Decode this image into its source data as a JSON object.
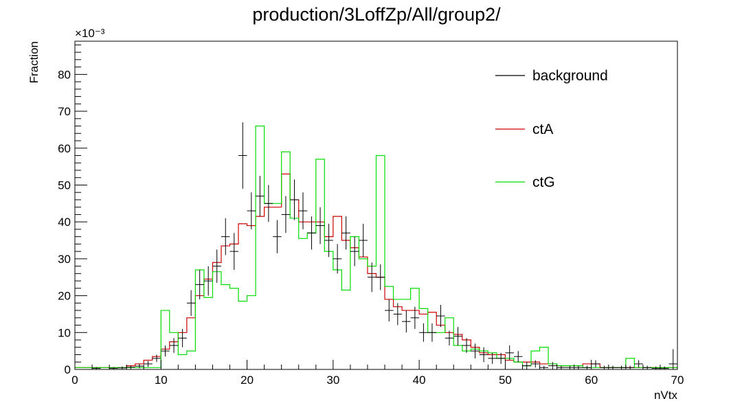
{
  "chart_data": {
    "type": "line",
    "title": "production/3LoffZp/All/group2/",
    "xlabel": "nVtx",
    "ylabel": "Fraction",
    "y_multiplier": "×10⁻³",
    "xlim": [
      0,
      70
    ],
    "ylim": [
      0,
      89
    ],
    "x_ticks": [
      0,
      10,
      20,
      30,
      40,
      50,
      60,
      70
    ],
    "y_ticks": [
      0,
      10,
      20,
      30,
      40,
      50,
      60,
      70,
      80
    ],
    "grid": false,
    "legend_position": "top-right",
    "colors": {
      "background": "#000000",
      "ctA": "#cc0000",
      "ctG": "#00dd00"
    },
    "bin_edges_start": 0,
    "bin_width": 1,
    "series": [
      {
        "name": "background",
        "style": "points-with-errors",
        "values": [
          0,
          0,
          0.3,
          0,
          0.3,
          0.4,
          0.6,
          0.9,
          1.5,
          3,
          5,
          6.5,
          8.5,
          18,
          23,
          24,
          28,
          36,
          32,
          58,
          43,
          47,
          45,
          36,
          42,
          46,
          43,
          37,
          39,
          35,
          30,
          37,
          32,
          35,
          25,
          25,
          16,
          15,
          13,
          14,
          10,
          10,
          14.5,
          8.5,
          9,
          6.5,
          5,
          4,
          3,
          3,
          4.5,
          3.5,
          1,
          1.5,
          0.5,
          1,
          0.5,
          0.5,
          0.5,
          0.5,
          1.5,
          0.5,
          0.5,
          0.5,
          0.5,
          1.5,
          0.5,
          0.3,
          0.3,
          1.5
        ],
        "errors": [
          0,
          0,
          0.3,
          0,
          0.3,
          0.4,
          0.5,
          0.6,
          0.8,
          1,
          1.5,
          2,
          2.5,
          3.5,
          4,
          4,
          4.5,
          5,
          5,
          9,
          5,
          5.5,
          5,
          4.5,
          5,
          5.5,
          5,
          4.5,
          5,
          4.5,
          4,
          4.5,
          4,
          4.5,
          4,
          3.5,
          3,
          3,
          3,
          3,
          2.5,
          2.5,
          3,
          2,
          2.5,
          2,
          2,
          2,
          1.5,
          1.5,
          2,
          1.5,
          1,
          1,
          0.5,
          1,
          0.5,
          0.5,
          0.5,
          0.5,
          1,
          0.5,
          0.5,
          0.5,
          0.5,
          1,
          0.5,
          0.5,
          0.5,
          4
        ]
      },
      {
        "name": "ctA",
        "style": "step",
        "values": [
          0.5,
          0.5,
          0.5,
          0.5,
          0.5,
          0.5,
          1,
          1.5,
          2.5,
          3.5,
          5.5,
          7.5,
          10,
          14,
          20,
          24.5,
          29,
          33.5,
          34,
          39.5,
          39,
          41.5,
          44,
          44,
          53,
          46,
          40,
          40,
          40,
          36,
          41.5,
          35,
          33,
          30.5,
          26,
          25,
          19,
          17,
          16,
          16,
          15,
          15.5,
          12,
          10,
          9.5,
          8,
          6,
          4.5,
          4,
          4,
          2.5,
          2,
          2,
          2,
          1.5,
          1.5,
          1,
          1,
          1,
          1.5,
          1.5,
          0.5,
          0.5,
          0.5,
          0.5,
          0.5,
          0.5,
          0.5,
          0.5,
          0.5
        ]
      },
      {
        "name": "ctG",
        "style": "step",
        "values": [
          0.5,
          0.5,
          0.5,
          0.5,
          0.5,
          0.5,
          0.5,
          0.5,
          0.5,
          0.5,
          16,
          10,
          4,
          5,
          27,
          19.5,
          26.5,
          23,
          22,
          18.5,
          20,
          66,
          45,
          45,
          59,
          41,
          35.5,
          37,
          57,
          32,
          27,
          21.5,
          36,
          30,
          28,
          58,
          22.5,
          19,
          19,
          22,
          16.5,
          10,
          10,
          14,
          6.5,
          5,
          5.5,
          5,
          4.5,
          3,
          3,
          2,
          1,
          5,
          6,
          1.5,
          1,
          1,
          1,
          0.5,
          0.5,
          0.5,
          0.5,
          0.5,
          3,
          0.5,
          0.5,
          0.5,
          0.5,
          0.5
        ]
      }
    ]
  }
}
